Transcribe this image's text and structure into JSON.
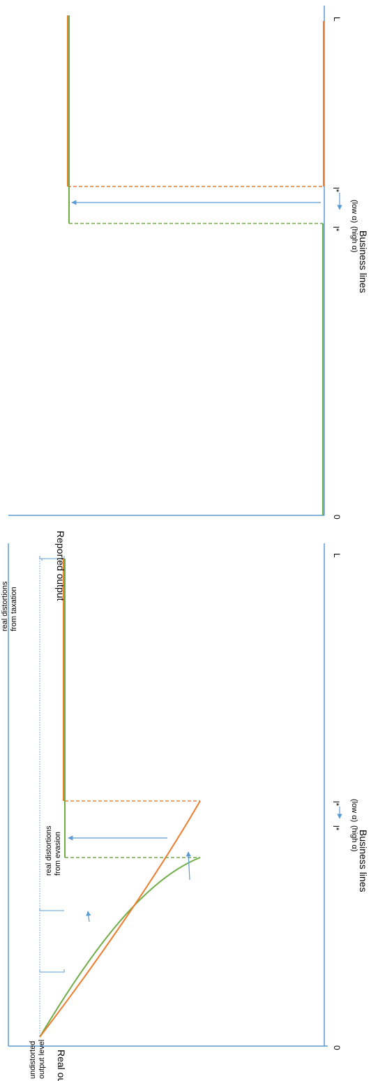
{
  "colors": {
    "axis": "#5B9BD5",
    "orange": "#ED7D31",
    "green": "#70AD47",
    "arrow": "#5B9BD5"
  },
  "top_panel": {
    "y_axis_label": "Real output",
    "origin_label": "0",
    "end_label": "L",
    "lstar_left": "l*",
    "lstar_right": "l*",
    "high_alpha": "(high α)",
    "low_alpha": "(low α)",
    "x_axis_label": "Business lines",
    "undistorted_line1": "undistorted",
    "undistorted_line2": "output level",
    "evasion_line1": "real distortions",
    "evasion_line2": "from evasion",
    "taxation_line1": "real distortions",
    "taxation_line2": "from taxation"
  },
  "bottom_panel": {
    "y_axis_label": "Reported output",
    "origin_label": "0",
    "end_label": "L",
    "lstar_left": "l*",
    "lstar_right": "l*",
    "high_alpha": "(high α)",
    "low_alpha": "(low α)",
    "x_axis_label": "Business lines"
  }
}
